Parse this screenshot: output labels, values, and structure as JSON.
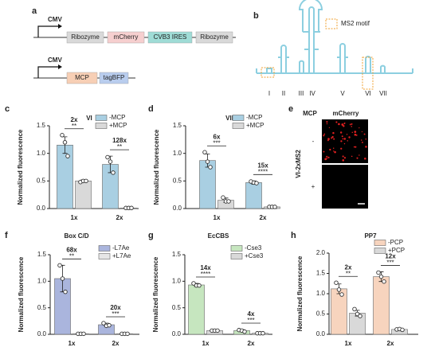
{
  "panel_labels": [
    "a",
    "b",
    "c",
    "d",
    "e",
    "f",
    "g",
    "h"
  ],
  "constructs": [
    {
      "promoter": "CMV",
      "parts": [
        "Ribozyme",
        "mCherry",
        "CVB3 IRES",
        "Ribozyme"
      ]
    },
    {
      "promoter": "CMV",
      "parts": [
        "MCP",
        "tagBFP"
      ]
    }
  ],
  "rna_structure": {
    "motif": "MS2 motif",
    "stems": [
      "I",
      "II",
      "III",
      "IV",
      "V",
      "VI",
      "VII"
    ]
  },
  "imaging": {
    "columns": [
      "MCP",
      "mCherry"
    ],
    "rows": [
      "-",
      "+"
    ],
    "construct": "VI-2xMS2"
  },
  "chart_data": [
    {
      "type": "bar",
      "title": "VI",
      "y_label": "Normalized fluorescence",
      "categories": [
        "1x",
        "2x"
      ],
      "ylim": [
        0,
        1.5
      ],
      "yticks": [
        {
          "value": 0,
          "label": "0.0"
        },
        0.5,
        {
          "value": 1,
          "label": "1.0"
        },
        1.5
      ],
      "series": [
        {
          "name": "-MCP",
          "color": "#a9cfe2",
          "values": [
            1.15,
            0.8
          ],
          "errors": [
            0.15,
            0.15
          ],
          "points": [
            [
              1.33,
              1.2,
              0.95
            ],
            [
              0.93,
              0.85,
              0.65
            ]
          ]
        },
        {
          "name": "+MCP",
          "color": "#d9d9d9",
          "values": [
            0.5,
            0.01
          ],
          "errors": [
            0.02,
            0.005
          ],
          "points": [
            [
              0.48,
              0.5,
              0.5
            ],
            [
              0.01,
              0.01,
              0.01
            ]
          ]
        }
      ],
      "annotations": [
        {
          "fold": "2x",
          "significance": "**"
        },
        {
          "fold": "128x",
          "significance": "**"
        }
      ]
    },
    {
      "type": "bar",
      "title": "VII",
      "y_label": "Normalized fluorescence",
      "categories": [
        "1x",
        "2x"
      ],
      "ylim": [
        0,
        1.5
      ],
      "yticks": [
        {
          "value": 0,
          "label": "0.0"
        },
        0.5,
        {
          "value": 1,
          "label": "1.0"
        },
        1.5
      ],
      "series": [
        {
          "name": "-MCP",
          "color": "#a9cfe2",
          "values": [
            0.87,
            0.47
          ],
          "errors": [
            0.12,
            0.03
          ],
          "points": [
            [
              1.02,
              0.85,
              0.75
            ],
            [
              0.49,
              0.47,
              0.46
            ]
          ]
        },
        {
          "name": "+MCP",
          "color": "#d9d9d9",
          "values": [
            0.15,
            0.03
          ],
          "errors": [
            0.04,
            0.01
          ],
          "points": [
            [
              0.2,
              0.13,
              0.13
            ],
            [
              0.03,
              0.03,
              0.03
            ]
          ]
        }
      ],
      "annotations": [
        {
          "fold": "6x",
          "significance": "***"
        },
        {
          "fold": "15x",
          "significance": "****"
        }
      ]
    },
    {
      "type": "bar",
      "title": "Box C/D",
      "y_label": "Normalized fluorescence",
      "categories": [
        "1x",
        "2x"
      ],
      "ylim": [
        0,
        1.5
      ],
      "yticks": [
        {
          "value": 0,
          "label": "0.0"
        },
        0.5,
        {
          "value": 1,
          "label": "1.0"
        },
        1.5
      ],
      "series": [
        {
          "name": "-L7Ae",
          "color": "#aab5dd",
          "values": [
            1.05,
            0.18
          ],
          "errors": [
            0.25,
            0.03
          ],
          "points": [
            [
              1.3,
              1.05,
              0.8
            ],
            [
              0.21,
              0.16,
              0.17
            ]
          ]
        },
        {
          "name": "+L7Ae",
          "color": "#e6e6e6",
          "values": [
            0.01,
            0.01
          ],
          "errors": [
            0.005,
            0.005
          ],
          "points": [
            [
              0.01,
              0.01,
              0.01
            ],
            [
              0.01,
              0.01,
              0.01
            ]
          ]
        }
      ],
      "annotations": [
        {
          "fold": "68x",
          "significance": "**"
        },
        {
          "fold": "20x",
          "significance": "***"
        }
      ]
    },
    {
      "type": "bar",
      "title": "EcCBS",
      "y_label": "Normalized fluorescence",
      "categories": [
        "1x",
        "2x"
      ],
      "ylim": [
        0,
        1.5
      ],
      "yticks": [
        {
          "value": 0,
          "label": "0.0"
        },
        0.5,
        {
          "value": 1,
          "label": "1.0"
        },
        1.5
      ],
      "series": [
        {
          "name": "-Cse3",
          "color": "#c6e6bf",
          "values": [
            0.93,
            0.07
          ],
          "errors": [
            0.03,
            0.02
          ],
          "points": [
            [
              0.96,
              0.92,
              0.92
            ],
            [
              0.08,
              0.07,
              0.05
            ]
          ]
        },
        {
          "name": "+Cse3",
          "color": "#d9d9d9",
          "values": [
            0.07,
            0.02
          ],
          "errors": [
            0.005,
            0.005
          ],
          "points": [
            [
              0.07,
              0.07,
              0.07
            ],
            [
              0.02,
              0.02,
              0.02
            ]
          ]
        }
      ],
      "annotations": [
        {
          "fold": "14x",
          "significance": "****"
        },
        {
          "fold": "4x",
          "significance": "***"
        }
      ]
    },
    {
      "type": "bar",
      "title": "PP7",
      "y_label": "Normalized fluorescence",
      "categories": [
        "1x",
        "2x"
      ],
      "ylim": [
        0,
        2
      ],
      "yticks": [
        {
          "value": 0,
          "label": "0.0"
        },
        0.5,
        {
          "value": 1,
          "label": "1.0"
        },
        1.5,
        {
          "value": 2,
          "label": "2.0"
        }
      ],
      "series": [
        {
          "name": "-PCP",
          "color": "#f7d4be",
          "values": [
            1.12,
            1.42
          ],
          "errors": [
            0.12,
            0.12
          ],
          "points": [
            [
              1.27,
              1.1,
              0.98
            ],
            [
              1.52,
              1.42,
              1.3
            ]
          ]
        },
        {
          "name": "+PCP",
          "color": "#d9d9d9",
          "values": [
            0.52,
            0.12
          ],
          "errors": [
            0.07,
            0.01
          ],
          "points": [
            [
              0.62,
              0.5,
              0.45
            ],
            [
              0.12,
              0.13,
              0.11
            ]
          ]
        }
      ],
      "annotations": [
        {
          "fold": "2x",
          "significance": "**"
        },
        {
          "fold": "12x",
          "significance": "***"
        }
      ]
    }
  ]
}
